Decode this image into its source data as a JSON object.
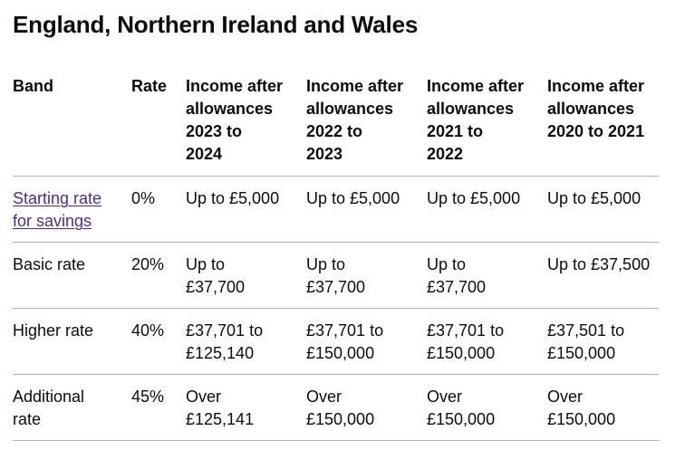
{
  "heading": "England, Northern Ireland and Wales",
  "columns": {
    "band": "Band",
    "rate": "Rate",
    "y2023": [
      "Income after",
      "allowances",
      "2023 to",
      "2024"
    ],
    "y2022": [
      "Income after",
      "allowances",
      "2022 to",
      "2023"
    ],
    "y2021": [
      "Income after",
      "allowances",
      "2021 to",
      "2022"
    ],
    "y2020": [
      "Income after",
      "allowances",
      "2020 to 2021"
    ]
  },
  "rows": [
    {
      "band": [
        "Starting rate",
        "for savings"
      ],
      "band_is_link": true,
      "rate": "0%",
      "y2023": [
        "Up to £5,000"
      ],
      "y2022": [
        "Up to £5,000"
      ],
      "y2021": [
        "Up to £5,000"
      ],
      "y2020": [
        "Up to £5,000"
      ]
    },
    {
      "band": [
        "Basic rate"
      ],
      "band_is_link": false,
      "rate": "20%",
      "y2023": [
        "Up to",
        "£37,700"
      ],
      "y2022": [
        "Up to",
        "£37,700"
      ],
      "y2021": [
        "Up to",
        "£37,700"
      ],
      "y2020": [
        "Up to £37,500"
      ]
    },
    {
      "band": [
        "Higher rate"
      ],
      "band_is_link": false,
      "rate": "40%",
      "y2023": [
        "£37,701 to",
        "£125,140"
      ],
      "y2022": [
        "£37,701 to",
        "£150,000"
      ],
      "y2021": [
        "£37,701 to",
        "£150,000"
      ],
      "y2020": [
        "£37,501 to",
        "£150,000"
      ]
    },
    {
      "band": [
        "Additional",
        "rate"
      ],
      "band_is_link": false,
      "rate": "45%",
      "y2023": [
        "Over",
        "£125,141"
      ],
      "y2022": [
        "Over",
        "£150,000"
      ],
      "y2021": [
        "Over",
        "£150,000"
      ],
      "y2020": [
        "Over",
        "£150,000"
      ]
    }
  ],
  "colors": {
    "text": "#0b0c0c",
    "link": "#4c2c92",
    "border": "#b1b4b6"
  }
}
